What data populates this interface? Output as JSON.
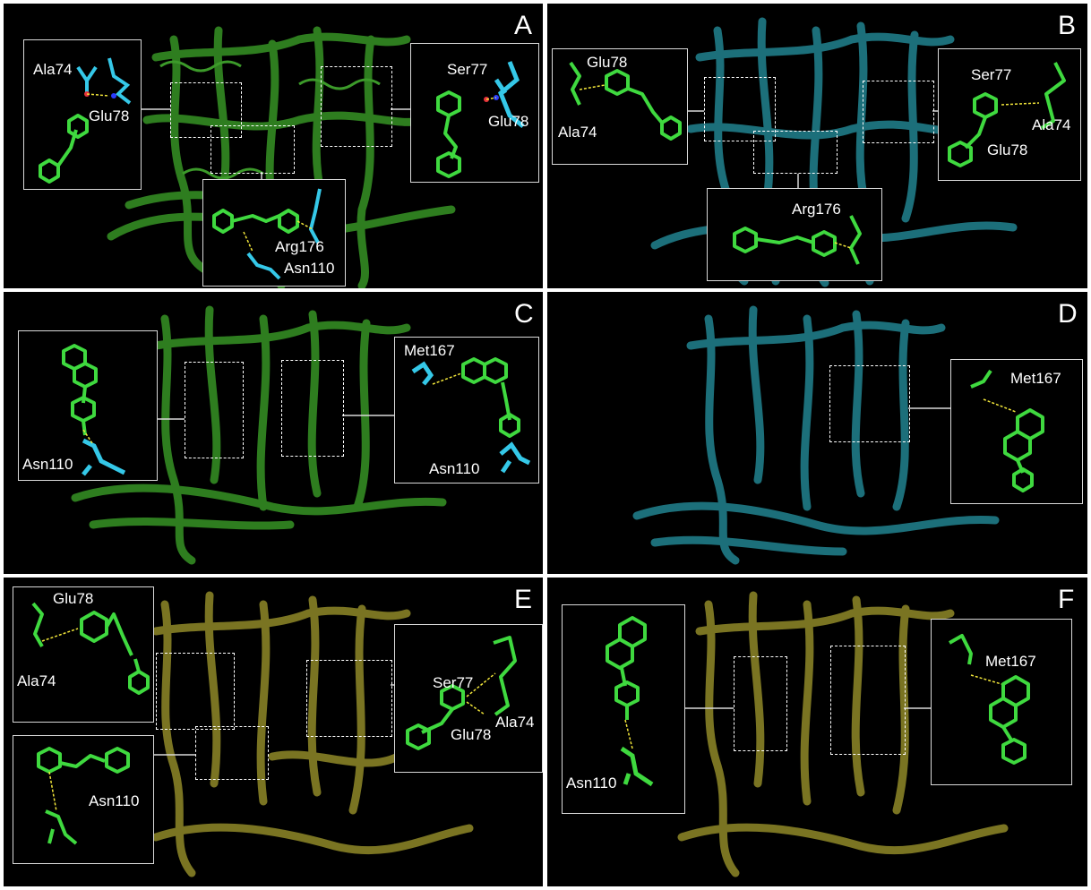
{
  "colors": {
    "protein_green": "#2e7d1f",
    "protein_teal": "#1c6f7a",
    "protein_olive": "#7a7422",
    "ligand": "#3fd93f",
    "residue_cyan": "#35c8e8",
    "oxygen": "#e8323c",
    "nitrogen": "#2a3cff",
    "hbond": "#f2e63a",
    "frame": "#d9d9d9"
  },
  "panels": [
    {
      "letter": "A",
      "protein_color": "protein_green",
      "labels": [
        "Ala74",
        "Glu78",
        "Ser77",
        "Glu78",
        "Arg176",
        "Asn110"
      ]
    },
    {
      "letter": "B",
      "protein_color": "protein_teal",
      "labels": [
        "Glu78",
        "Ala74",
        "Ser77",
        "Ala74",
        "Glu78",
        "Arg176"
      ]
    },
    {
      "letter": "C",
      "protein_color": "protein_green",
      "labels": [
        "Asn110",
        "Met167",
        "Asn110"
      ]
    },
    {
      "letter": "D",
      "protein_color": "protein_teal",
      "labels": [
        "Met167"
      ]
    },
    {
      "letter": "E",
      "protein_color": "protein_olive",
      "labels": [
        "Glu78",
        "Ala74",
        "Ser77",
        "Glu78",
        "Ala74",
        "Asn110"
      ]
    },
    {
      "letter": "F",
      "protein_color": "protein_olive",
      "labels": [
        "Asn110",
        "Met167"
      ]
    }
  ]
}
